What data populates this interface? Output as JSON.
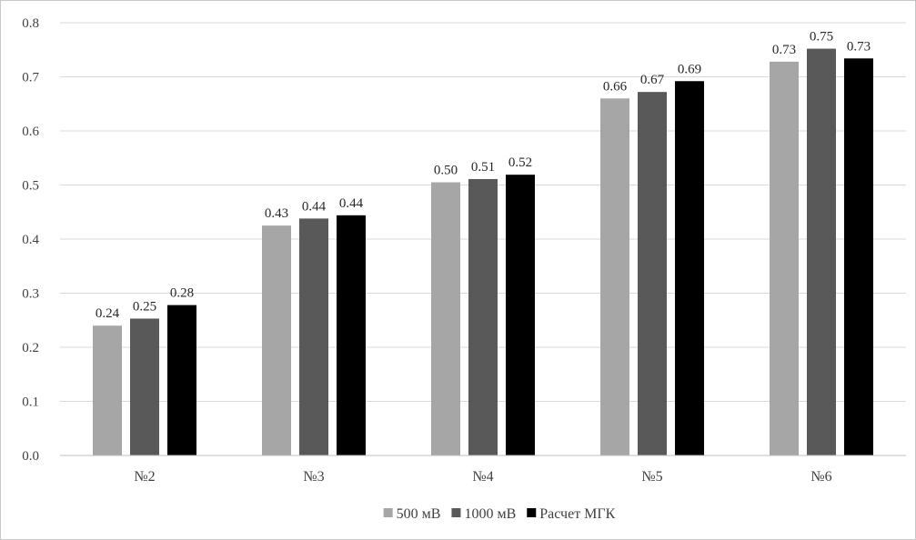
{
  "chart_data": {
    "type": "bar",
    "categories": [
      "№2",
      "№3",
      "№4",
      "№5",
      "№6"
    ],
    "series": [
      {
        "name": "500 мВ",
        "color": "#a6a6a6",
        "values": [
          0.24,
          0.425,
          0.505,
          0.66,
          0.728
        ]
      },
      {
        "name": "1000 мВ",
        "color": "#595959",
        "values": [
          0.253,
          0.438,
          0.511,
          0.672,
          0.752
        ]
      },
      {
        "name": "Расчет МГК",
        "color": "#000000",
        "values": [
          0.278,
          0.444,
          0.519,
          0.692,
          0.734
        ]
      }
    ],
    "data_labels": [
      [
        "0.24",
        "0.43",
        "0.50",
        "0.66",
        "0.73"
      ],
      [
        "0.25",
        "0.44",
        "0.51",
        "0.67",
        "0.75"
      ],
      [
        "0.28",
        "0.44",
        "0.52",
        "0.69",
        "0.73"
      ]
    ],
    "y_ticks": [
      "0.0",
      "0.1",
      "0.2",
      "0.3",
      "0.4",
      "0.5",
      "0.6",
      "0.7",
      "0.8"
    ],
    "ylim": [
      0,
      0.8
    ],
    "grid": true,
    "legend_position": "bottom"
  }
}
